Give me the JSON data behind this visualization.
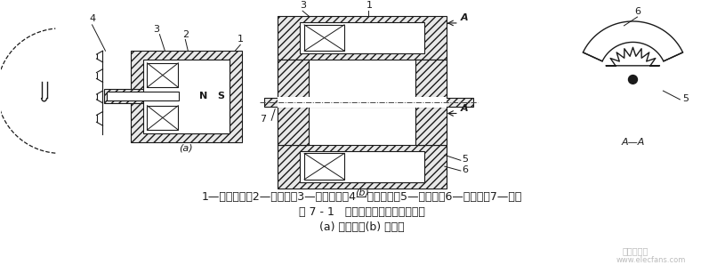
{
  "bg_color": "#ffffff",
  "fig_width": 8.15,
  "fig_height": 3.07,
  "dpi": 100,
  "line1": "1—永久磁铁；2—软磁铁；3—感应线圈；4—测量齿轮；5—内齿轮；6—外齿轮；7—转轴",
  "line2": "图 7 - 1   变磁通式磁电传感器结构图",
  "line3": "(a) 开磁路；(b) 闭磁路",
  "watermark": "电子发烧友",
  "watermark_url": "www.elecfans.com"
}
